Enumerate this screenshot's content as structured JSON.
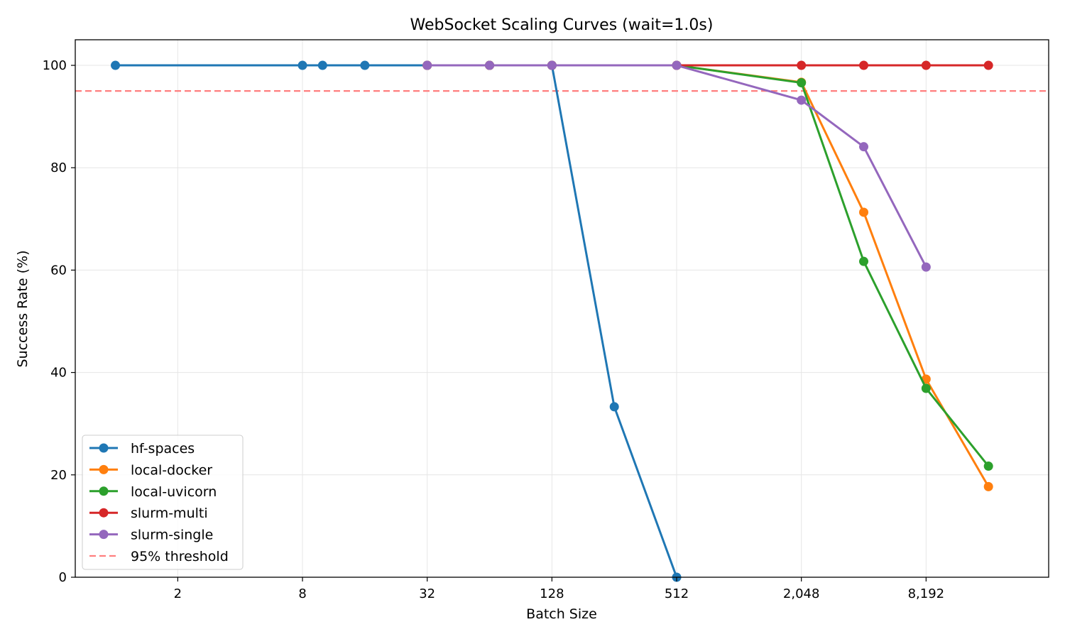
{
  "chart_data": {
    "type": "line",
    "title": "WebSocket Scaling Curves (wait=1.0s)",
    "xlabel": "Batch Size",
    "ylabel": "Success Rate (%)",
    "x_scale": "log2",
    "xlim": [
      0.64,
      32000
    ],
    "ylim": [
      0,
      105
    ],
    "x_ticks": [
      2,
      8,
      32,
      128,
      512,
      2048,
      8192
    ],
    "x_tick_labels": [
      "2",
      "8",
      "32",
      "128",
      "512",
      "2,048",
      "8,192"
    ],
    "y_ticks": [
      0,
      20,
      40,
      60,
      80,
      100
    ],
    "grid": true,
    "legend_position": "lower-left",
    "threshold": {
      "name": "95% threshold",
      "value": 95,
      "color": "#ff7f7f",
      "style": "dashed"
    },
    "series": [
      {
        "name": "hf-spaces",
        "color": "#1f77b4",
        "x": [
          1,
          8,
          10,
          16,
          32,
          64,
          128,
          256,
          512
        ],
        "y": [
          100,
          100,
          100,
          100,
          100,
          100,
          100,
          33.3,
          0
        ]
      },
      {
        "name": "local-docker",
        "color": "#ff7f0e",
        "x": [
          32,
          64,
          128,
          512,
          2048,
          4096,
          8192,
          16384
        ],
        "y": [
          100,
          100,
          100,
          100,
          96.7,
          71.3,
          38.7,
          17.7
        ]
      },
      {
        "name": "local-uvicorn",
        "color": "#2ca02c",
        "x": [
          32,
          64,
          128,
          512,
          2048,
          4096,
          8192,
          16384
        ],
        "y": [
          100,
          100,
          100,
          100,
          96.6,
          61.7,
          36.9,
          21.7
        ]
      },
      {
        "name": "slurm-multi",
        "color": "#d62728",
        "x": [
          32,
          64,
          128,
          512,
          2048,
          4096,
          8192,
          16384
        ],
        "y": [
          100,
          100,
          100,
          100,
          100,
          100,
          100,
          100
        ]
      },
      {
        "name": "slurm-single",
        "color": "#9467bd",
        "x": [
          32,
          64,
          128,
          512,
          2048,
          4096,
          8192
        ],
        "y": [
          100,
          100,
          100,
          100,
          93.2,
          84.1,
          60.6
        ]
      }
    ]
  }
}
